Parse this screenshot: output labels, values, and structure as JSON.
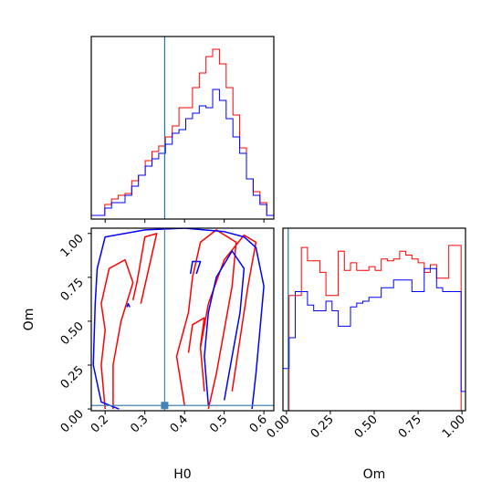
{
  "chart_data": [
    {
      "type": "histogram",
      "panel": "H0 marginal",
      "x_range": [
        0.165,
        0.625
      ],
      "truth_line": {
        "x": 0.35,
        "color": "#1f77b4"
      },
      "x_edges": [
        0.165,
        0.182,
        0.199,
        0.216,
        0.233,
        0.25,
        0.267,
        0.284,
        0.301,
        0.318,
        0.335,
        0.352,
        0.369,
        0.386,
        0.403,
        0.42,
        0.437,
        0.454,
        0.471,
        0.488,
        0.505,
        0.522,
        0.539,
        0.556,
        0.573,
        0.59,
        0.607,
        0.624
      ],
      "series": [
        {
          "color": "#ff0000",
          "values": [
            0.02,
            0.02,
            0.08,
            0.11,
            0.13,
            0.14,
            0.21,
            0.24,
            0.32,
            0.37,
            0.4,
            0.45,
            0.51,
            0.61,
            0.61,
            0.72,
            0.8,
            0.89,
            0.93,
            0.85,
            0.72,
            0.57,
            0.39,
            0.22,
            0.15,
            0.09,
            0.02
          ]
        },
        {
          "color": "#0000ff",
          "values": [
            0.02,
            0.02,
            0.06,
            0.09,
            0.09,
            0.13,
            0.18,
            0.24,
            0.29,
            0.33,
            0.36,
            0.41,
            0.47,
            0.49,
            0.55,
            0.58,
            0.62,
            0.61,
            0.71,
            0.65,
            0.55,
            0.45,
            0.36,
            0.22,
            0.13,
            0.08,
            0.02
          ]
        }
      ]
    },
    {
      "type": "contour",
      "panel": "joint",
      "xlabel": "H0",
      "ylabel": "Om",
      "x_range": [
        0.165,
        0.625
      ],
      "y_range": [
        -0.01,
        1.03
      ],
      "xticks": [
        "0.2",
        "0.3",
        "0.4",
        "0.5",
        "0.6"
      ],
      "xtick_values": [
        0.2,
        0.3,
        0.4,
        0.5,
        0.6
      ],
      "yticks": [
        "0.00",
        "0.25",
        "0.50",
        "0.75",
        "1.00"
      ],
      "ytick_values": [
        0.0,
        0.25,
        0.5,
        0.75,
        1.0
      ],
      "truth_point": {
        "x": 0.35,
        "y": 0.02,
        "color": "#4682b4"
      },
      "series": [
        {
          "color": "#ff0000",
          "contours": [
            [
              [
                0.2,
                0.0
              ],
              [
                0.19,
                0.25
              ],
              [
                0.2,
                0.45
              ],
              [
                0.19,
                0.6
              ],
              [
                0.21,
                0.8
              ],
              [
                0.25,
                0.85
              ],
              [
                0.27,
                0.72
              ],
              [
                0.24,
                0.5
              ],
              [
                0.22,
                0.25
              ],
              [
                0.22,
                0.0
              ]
            ],
            [
              [
                0.4,
                0.02
              ],
              [
                0.38,
                0.3
              ],
              [
                0.41,
                0.55
              ],
              [
                0.42,
                0.75
              ],
              [
                0.44,
                0.95
              ],
              [
                0.48,
                1.02
              ],
              [
                0.53,
                0.95
              ],
              [
                0.52,
                0.7
              ],
              [
                0.5,
                0.45
              ],
              [
                0.48,
                0.2
              ],
              [
                0.46,
                0.0
              ]
            ],
            [
              [
                0.45,
                0.1
              ],
              [
                0.44,
                0.35
              ],
              [
                0.46,
                0.6
              ],
              [
                0.5,
                0.85
              ],
              [
                0.55,
                0.99
              ],
              [
                0.58,
                0.95
              ],
              [
                0.56,
                0.7
              ],
              [
                0.54,
                0.4
              ],
              [
                0.52,
                0.1
              ]
            ],
            [
              [
                0.41,
                0.32
              ],
              [
                0.42,
                0.48
              ],
              [
                0.45,
                0.52
              ],
              [
                0.44,
                0.36
              ]
            ],
            [
              [
                0.27,
                0.62
              ],
              [
                0.28,
                0.72
              ],
              [
                0.3,
                0.98
              ],
              [
                0.33,
                1.0
              ],
              [
                0.31,
                0.8
              ],
              [
                0.29,
                0.6
              ]
            ]
          ]
        },
        {
          "color": "#0000ff",
          "contours": [
            [
              [
                0.235,
                0.0
              ],
              [
                0.19,
                0.04
              ],
              [
                0.17,
                0.25
              ],
              [
                0.175,
                0.6
              ],
              [
                0.18,
                0.8
              ],
              [
                0.2,
                0.98
              ],
              [
                0.3,
                1.02
              ],
              [
                0.4,
                1.03
              ],
              [
                0.5,
                1.01
              ],
              [
                0.55,
                0.98
              ],
              [
                0.58,
                0.92
              ],
              [
                0.6,
                0.7
              ],
              [
                0.59,
                0.45
              ],
              [
                0.58,
                0.2
              ],
              [
                0.57,
                0.0
              ]
            ],
            [
              [
                0.46,
                0.02
              ],
              [
                0.45,
                0.3
              ],
              [
                0.46,
                0.55
              ],
              [
                0.48,
                0.75
              ],
              [
                0.52,
                0.9
              ],
              [
                0.55,
                0.8
              ],
              [
                0.54,
                0.55
              ],
              [
                0.52,
                0.3
              ],
              [
                0.5,
                0.05
              ]
            ],
            [
              [
                0.415,
                0.77
              ],
              [
                0.42,
                0.84
              ],
              [
                0.44,
                0.84
              ],
              [
                0.43,
                0.77
              ]
            ],
            [
              [
                0.255,
                0.58
              ],
              [
                0.258,
                0.6
              ],
              [
                0.262,
                0.58
              ]
            ]
          ]
        }
      ]
    },
    {
      "type": "histogram",
      "panel": "Om marginal",
      "xlabel": "Om",
      "x_range": [
        -0.02,
        1.02
      ],
      "xticks": [
        "0.00",
        "0.25",
        "0.50",
        "0.75",
        "1.00"
      ],
      "xtick_values": [
        0.0,
        0.25,
        0.5,
        0.75,
        1.0
      ],
      "truth_line": {
        "x": 0.01,
        "color": "#1f77b4"
      },
      "x_edges": [
        -0.02,
        0.015,
        0.05,
        0.085,
        0.12,
        0.155,
        0.19,
        0.225,
        0.26,
        0.295,
        0.33,
        0.365,
        0.4,
        0.435,
        0.47,
        0.505,
        0.54,
        0.575,
        0.61,
        0.645,
        0.68,
        0.715,
        0.75,
        0.785,
        0.82,
        0.855,
        0.89,
        0.925,
        0.96,
        0.995,
        1.02
      ],
      "series": [
        {
          "color": "#ff0000",
          "values": [
            0.0,
            0.6,
            0.6,
            0.85,
            0.78,
            0.78,
            0.72,
            0.6,
            0.6,
            0.83,
            0.73,
            0.77,
            0.73,
            0.73,
            0.75,
            0.73,
            0.79,
            0.78,
            0.79,
            0.83,
            0.81,
            0.79,
            0.77,
            0.72,
            0.76,
            0.69,
            0.69,
            0.86,
            0.86,
            0.0
          ]
        },
        {
          "color": "#0000ff",
          "values": [
            0.22,
            0.38,
            0.62,
            0.62,
            0.55,
            0.52,
            0.52,
            0.57,
            0.52,
            0.44,
            0.44,
            0.54,
            0.56,
            0.57,
            0.59,
            0.59,
            0.64,
            0.64,
            0.68,
            0.68,
            0.68,
            0.62,
            0.62,
            0.74,
            0.74,
            0.64,
            0.62,
            0.62,
            0.62,
            0.1
          ]
        }
      ]
    }
  ]
}
